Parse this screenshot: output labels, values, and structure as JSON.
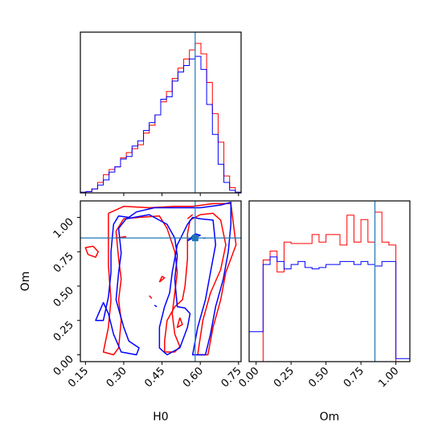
{
  "chart_data": {
    "type": "corner",
    "parameters": [
      "H0",
      "Om"
    ],
    "truth": {
      "H0": 0.58,
      "Om": 0.85
    },
    "series_colors": {
      "red": "#ff0000",
      "blue": "#0000ff",
      "truth": "#1f77b4"
    },
    "panels": [
      {
        "id": "hist-H0",
        "type": "step-histogram",
        "xlim": [
          0.13,
          0.76
        ],
        "bin_edges": [
          0.13,
          0.1525,
          0.175,
          0.1975,
          0.22,
          0.2425,
          0.265,
          0.2875,
          0.31,
          0.3325,
          0.355,
          0.3775,
          0.4,
          0.4225,
          0.445,
          0.4675,
          0.49,
          0.5125,
          0.535,
          0.5575,
          0.58,
          0.6025,
          0.625,
          0.6475,
          0.67,
          0.6925,
          0.715,
          0.7375,
          0.76
        ],
        "series": [
          {
            "color": "red",
            "values": [
              0.5,
              1.0,
              3.0,
              8.0,
              14.0,
              18.0,
              20.0,
              27.0,
              31.0,
              34.0,
              37.0,
              46.0,
              52.0,
              60.0,
              70.0,
              78.0,
              88.0,
              96.0,
              103.0,
              110.0,
              115.0,
              107.0,
              85.0,
              61.0,
              39.0,
              13.0,
              4.0,
              0.5
            ]
          },
          {
            "color": "blue",
            "values": [
              0.5,
              1.0,
              3.0,
              6.0,
              10.0,
              16.0,
              20.0,
              26.0,
              28.0,
              36.0,
              40.0,
              48.0,
              54.0,
              60.0,
              72.0,
              74.0,
              86.0,
              93.0,
              98.0,
              103.0,
              105.0,
              95.0,
              68.0,
              45.0,
              22.0,
              8.0,
              2.0,
              0.5
            ]
          }
        ]
      },
      {
        "id": "hist-Om",
        "type": "step-histogram",
        "xlim": [
          -0.05,
          1.1
        ],
        "bin_edges": [
          -0.05,
          0.0,
          0.05,
          0.1,
          0.15,
          0.2,
          0.25,
          0.3,
          0.35,
          0.4,
          0.45,
          0.5,
          0.55,
          0.6,
          0.65,
          0.7,
          0.75,
          0.8,
          0.85,
          0.9,
          0.95,
          1.0,
          1.05,
          1.1
        ],
        "series": [
          {
            "color": "red",
            "values": [
              0,
              0,
              0.68,
              0.74,
              0.6,
              0.8,
              0.79,
              0.79,
              0.79,
              0.85,
              0.8,
              0.85,
              0.85,
              0.78,
              0.98,
              0.8,
              0.95,
              0.8,
              1.0,
              0.8,
              0.78,
              0,
              0
            ]
          },
          {
            "color": "blue",
            "values": [
              0.2,
              0.2,
              0.65,
              0.7,
              0.67,
              0.62,
              0.65,
              0.67,
              0.63,
              0.62,
              0.63,
              0.65,
              0.65,
              0.67,
              0.67,
              0.65,
              0.67,
              0.65,
              0.64,
              0.67,
              0.67,
              0.02,
              0.02
            ]
          }
        ]
      },
      {
        "id": "contour-H0-Om",
        "type": "contour",
        "xlim": [
          0.13,
          0.76
        ],
        "ylim": [
          -0.05,
          1.12
        ],
        "series": [
          {
            "color": "red",
            "paths": [
              [
                [
                  0.24,
                  1.03
                ],
                [
                  0.3,
                  1.08
                ],
                [
                  0.4,
                  1.07
                ],
                [
                  0.5,
                  1.08
                ],
                [
                  0.57,
                  1.08
                ],
                [
                  0.65,
                  1.1
                ],
                [
                  0.72,
                  1.1
                ],
                [
                  0.73,
                  0.95
                ],
                [
                  0.74,
                  0.8
                ],
                [
                  0.7,
                  0.6
                ],
                [
                  0.68,
                  0.4
                ],
                [
                  0.65,
                  0.2
                ],
                [
                  0.63,
                  0.0
                ],
                [
                  0.59,
                  0.0
                ],
                [
                  0.61,
                  0.25
                ],
                [
                  0.64,
                  0.45
                ],
                [
                  0.68,
                  0.62
                ],
                [
                  0.7,
                  0.8
                ],
                [
                  0.68,
                  0.98
                ],
                [
                  0.65,
                  1.03
                ],
                [
                  0.6,
                  1.02
                ],
                [
                  0.56,
                  0.98
                ],
                [
                  0.55,
                  0.88
                ],
                [
                  0.55,
                  0.7
                ],
                [
                  0.54,
                  0.5
                ],
                [
                  0.53,
                  0.4
                ],
                [
                  0.5,
                  0.35
                ],
                [
                  0.47,
                  0.25
                ],
                [
                  0.46,
                  0.1
                ],
                [
                  0.46,
                  0.02
                ],
                [
                  0.5,
                  0.02
                ],
                [
                  0.52,
                  0.06
                ],
                [
                  0.5,
                  0.15
                ],
                [
                  0.49,
                  0.3
                ],
                [
                  0.5,
                  0.45
                ],
                [
                  0.51,
                  0.6
                ],
                [
                  0.5,
                  0.75
                ],
                [
                  0.47,
                  0.92
                ],
                [
                  0.44,
                  1.01
                ],
                [
                  0.36,
                  1.0
                ],
                [
                  0.3,
                  0.99
                ],
                [
                  0.27,
                  0.9
                ],
                [
                  0.28,
                  0.7
                ],
                [
                  0.29,
                  0.55
                ],
                [
                  0.28,
                  0.4
                ],
                [
                  0.29,
                  0.25
                ],
                [
                  0.28,
                  0.05
                ],
                [
                  0.26,
                  0.0
                ],
                [
                  0.22,
                  0.02
                ],
                [
                  0.24,
                  0.2
                ],
                [
                  0.25,
                  0.4
                ],
                [
                  0.24,
                  0.65
                ],
                [
                  0.24,
                  0.85
                ],
                [
                  0.24,
                  1.03
                ]
              ],
              [
                [
                  0.16,
                  0.73
                ],
                [
                  0.19,
                  0.71
                ],
                [
                  0.2,
                  0.75
                ],
                [
                  0.18,
                  0.79
                ],
                [
                  0.15,
                  0.78
                ],
                [
                  0.16,
                  0.73
                ]
              ],
              [
                [
                  0.27,
                  0.85
                ],
                [
                  0.31,
                  0.86
                ]
              ],
              [
                [
                  0.44,
                  0.53
                ],
                [
                  0.46,
                  0.56
                ],
                [
                  0.45,
                  0.57
                ],
                [
                  0.44,
                  0.53
                ]
              ],
              [
                [
                  0.52,
                  0.27
                ],
                [
                  0.53,
                  0.22
                ],
                [
                  0.51,
                  0.2
                ],
                [
                  0.52,
                  0.27
                ]
              ],
              [
                [
                  0.4,
                  0.43
                ],
                [
                  0.41,
                  0.41
                ]
              ],
              [
                [
                  0.55,
                  0.99
                ],
                [
                  0.57,
                  1.02
                ]
              ]
            ]
          },
          {
            "color": "blue",
            "paths": [
              [
                [
                  0.26,
                  0.95
                ],
                [
                  0.28,
                  1.01
                ],
                [
                  0.32,
                  1.0
                ],
                [
                  0.35,
                  1.04
                ],
                [
                  0.42,
                  1.07
                ],
                [
                  0.52,
                  1.07
                ],
                [
                  0.6,
                  1.07
                ],
                [
                  0.68,
                  1.09
                ],
                [
                  0.72,
                  1.11
                ],
                [
                  0.72,
                  0.95
                ],
                [
                  0.71,
                  0.75
                ],
                [
                  0.69,
                  0.55
                ],
                [
                  0.66,
                  0.35
                ],
                [
                  0.64,
                  0.15
                ],
                [
                  0.62,
                  0.0
                ],
                [
                  0.57,
                  0.0
                ],
                [
                  0.59,
                  0.2
                ],
                [
                  0.62,
                  0.4
                ],
                [
                  0.64,
                  0.6
                ],
                [
                  0.66,
                  0.8
                ],
                [
                  0.65,
                  0.98
                ],
                [
                  0.6,
                  0.99
                ],
                [
                  0.57,
                  1.0
                ],
                [
                  0.55,
                  0.95
                ],
                [
                  0.51,
                  0.8
                ],
                [
                  0.49,
                  0.6
                ],
                [
                  0.48,
                  0.45
                ],
                [
                  0.46,
                  0.35
                ],
                [
                  0.44,
                  0.2
                ],
                [
                  0.44,
                  0.05
                ],
                [
                  0.47,
                  0.0
                ],
                [
                  0.52,
                  0.05
                ],
                [
                  0.55,
                  0.2
                ],
                [
                  0.56,
                  0.3
                ],
                [
                  0.54,
                  0.34
                ],
                [
                  0.51,
                  0.35
                ],
                [
                  0.5,
                  0.55
                ],
                [
                  0.51,
                  0.72
                ],
                [
                  0.5,
                  0.85
                ],
                [
                  0.47,
                  0.95
                ],
                [
                  0.4,
                  1.02
                ],
                [
                  0.31,
                  0.99
                ],
                [
                  0.28,
                  0.92
                ],
                [
                  0.29,
                  0.74
                ],
                [
                  0.28,
                  0.6
                ],
                [
                  0.27,
                  0.4
                ],
                [
                  0.3,
                  0.2
                ],
                [
                  0.32,
                  0.1
                ],
                [
                  0.36,
                  0.05
                ],
                [
                  0.35,
                  0.0
                ],
                [
                  0.29,
                  0.02
                ],
                [
                  0.26,
                  0.15
                ],
                [
                  0.24,
                  0.3
                ],
                [
                  0.22,
                  0.38
                ],
                [
                  0.19,
                  0.25
                ],
                [
                  0.22,
                  0.25
                ],
                [
                  0.24,
                  0.42
                ],
                [
                  0.25,
                  0.6
                ],
                [
                  0.25,
                  0.75
                ],
                [
                  0.26,
                  0.95
                ]
              ],
              [
                [
                  0.55,
                  0.83
                ],
                [
                  0.57,
                  0.85
                ],
                [
                  0.59,
                  0.86
                ],
                [
                  0.6,
                  0.87
                ],
                [
                  0.58,
                  0.88
                ],
                [
                  0.55,
                  0.83
                ]
              ],
              [
                [
                  0.61,
                  0.85
                ],
                [
                  0.62,
                  0.85
                ]
              ],
              [
                [
                  0.42,
                  0.36
                ],
                [
                  0.43,
                  0.35
                ]
              ]
            ]
          }
        ]
      }
    ],
    "axes": {
      "x_label": "H0",
      "y_label": "Om",
      "om_label": "Om",
      "h0_ticks": [
        "0.15",
        "0.30",
        "0.45",
        "0.60",
        "0.75"
      ],
      "h0_tick_values": [
        0.15,
        0.3,
        0.45,
        0.6,
        0.75
      ],
      "om_ticks": [
        "0.00",
        "0.25",
        "0.50",
        "0.75",
        "1.00"
      ],
      "om_tick_values": [
        0.0,
        0.25,
        0.5,
        0.75,
        1.0
      ]
    }
  }
}
